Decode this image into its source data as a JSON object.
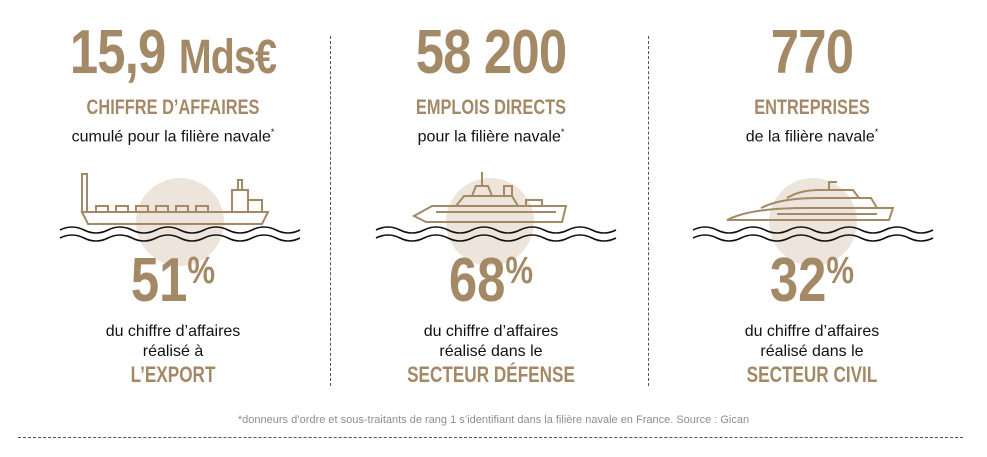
{
  "stats": [
    {
      "value": "15,9 ",
      "value_unit": "Mds€",
      "label": "CHIFFRE D’AFFAIRES",
      "sub": "cumulé pour la filière navale",
      "sub_mark": "*",
      "percent": "51",
      "percent_sign": "%",
      "desc_lines": [
        "du chiffre d’affaires",
        "réalisé à"
      ],
      "tag": "L’EXPORT",
      "icon": "cargo-ship-icon"
    },
    {
      "value": "58 200",
      "value_unit": "",
      "label": "EMPLOIS DIRECTS",
      "sub": "pour la filière navale",
      "sub_mark": "*",
      "percent": "68",
      "percent_sign": "%",
      "desc_lines": [
        "du chiffre d’affaires",
        "réalisé dans le"
      ],
      "tag": "SECTEUR DÉFENSE",
      "icon": "warship-icon"
    },
    {
      "value": "770",
      "value_unit": "",
      "label": "ENTREPRISES",
      "sub": "de la filière navale",
      "sub_mark": "*",
      "percent": "32",
      "percent_sign": "%",
      "desc_lines": [
        "du chiffre d’affaires",
        "réalisé dans le"
      ],
      "tag": "SECTEUR CIVIL",
      "icon": "yacht-icon"
    }
  ],
  "footnote": "*donneurs d’ordre et sous-traitants de rang 1 s’identifiant dans la filière navale en France. Source : Gican",
  "colors": {
    "accent": "#a48967",
    "circle": "#ede4db",
    "text": "#111111"
  }
}
